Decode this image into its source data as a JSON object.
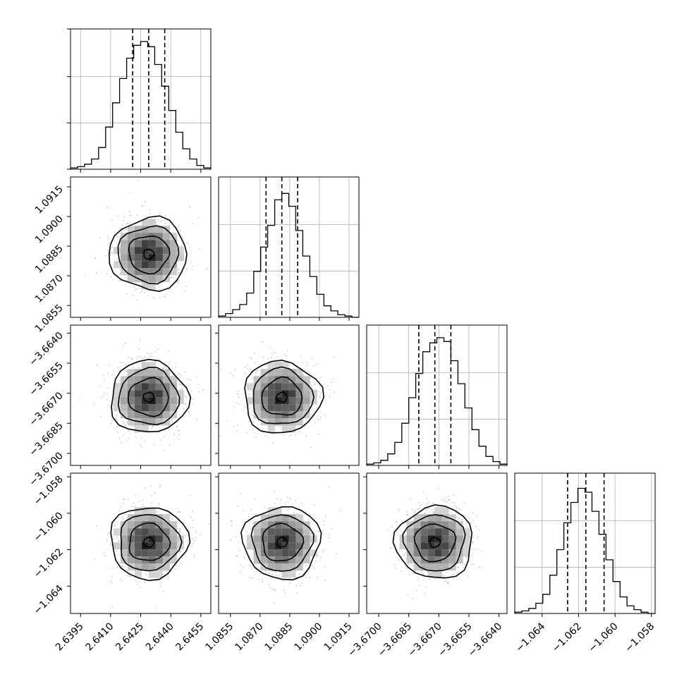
{
  "chart_data": {
    "type": "corner",
    "parameters": [
      {
        "ticks": [
          "2.6395",
          "2.6410",
          "2.6425",
          "2.6440",
          "2.6455"
        ],
        "range": [
          2.639,
          2.646
        ],
        "median": 2.6429,
        "q16": 2.6421,
        "q84": 2.6437
      },
      {
        "ticks": [
          "1.0855",
          "1.0870",
          "1.0885",
          "1.0900",
          "1.0915"
        ],
        "range": [
          1.0849,
          1.092
        ],
        "median": 1.0881,
        "q16": 1.0873,
        "q84": 1.0889
      },
      {
        "ticks": [
          "−3.6700",
          "−3.6685",
          "−3.6670",
          "−3.6655",
          "−3.6640"
        ],
        "range": [
          -3.6706,
          -3.6636
        ],
        "median": -3.6672,
        "q16": -3.668,
        "q84": -3.6664
      },
      {
        "ticks": [
          "−1.064",
          "−1.062",
          "−1.060",
          "−1.058"
        ],
        "range": [
          -1.0655,
          -1.0578
        ],
        "median": -1.0616,
        "q16": -1.0626,
        "q84": -1.0606
      }
    ],
    "histograms": [
      [
        0.01,
        0.02,
        0.04,
        0.08,
        0.17,
        0.33,
        0.52,
        0.71,
        0.87,
        0.97,
        1.0,
        0.96,
        0.82,
        0.65,
        0.46,
        0.29,
        0.16,
        0.08,
        0.03,
        0.01
      ],
      [
        0.01,
        0.03,
        0.06,
        0.1,
        0.19,
        0.36,
        0.55,
        0.72,
        0.92,
        0.97,
        0.87,
        0.68,
        0.48,
        0.32,
        0.18,
        0.09,
        0.05,
        0.02,
        0.01,
        0.0
      ],
      [
        0.01,
        0.02,
        0.04,
        0.09,
        0.18,
        0.33,
        0.53,
        0.72,
        0.89,
        0.96,
        1.0,
        0.97,
        0.82,
        0.64,
        0.45,
        0.28,
        0.15,
        0.07,
        0.03,
        0.01
      ],
      [
        0.01,
        0.02,
        0.04,
        0.08,
        0.15,
        0.3,
        0.5,
        0.71,
        0.87,
        0.98,
        0.95,
        0.8,
        0.62,
        0.42,
        0.25,
        0.13,
        0.06,
        0.03,
        0.01,
        0.0
      ]
    ],
    "grid": true,
    "contour_levels": 4,
    "quantiles": [
      0.16,
      0.5,
      0.84
    ]
  }
}
